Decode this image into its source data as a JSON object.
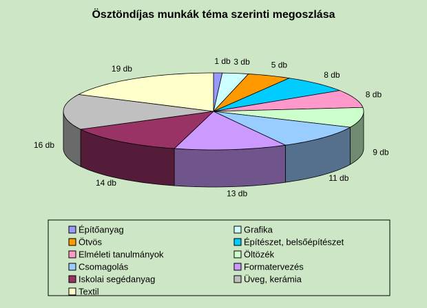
{
  "chart_data": {
    "type": "pie3d",
    "title": "Ösztöndíjas munkák téma szerinti megoszlása",
    "categories": [
      "Építőanyag",
      "Grafika",
      "Ötvös",
      "Építészet, belsőépítészet",
      "Elméleti tanulmányok",
      "Öltözék",
      "Csomagolás",
      "Formatervezés",
      "Iskolai segédanyag",
      "Üveg, kerámia",
      "Textil"
    ],
    "values": [
      1,
      3,
      5,
      8,
      8,
      9,
      11,
      13,
      14,
      16,
      19
    ],
    "value_labels": [
      "1 db",
      "3 db",
      "5 db",
      "8 db",
      "8 db",
      "9 db",
      "11 db",
      "13 db",
      "14 db",
      "16 db",
      "19 db"
    ],
    "colors": [
      "#9999ff",
      "#ccffff",
      "#ff9900",
      "#00ccff",
      "#ff99cc",
      "#ccffcc",
      "#99ccff",
      "#cc99ff",
      "#993366",
      "#c0c0c0",
      "#ffffcc"
    ]
  }
}
